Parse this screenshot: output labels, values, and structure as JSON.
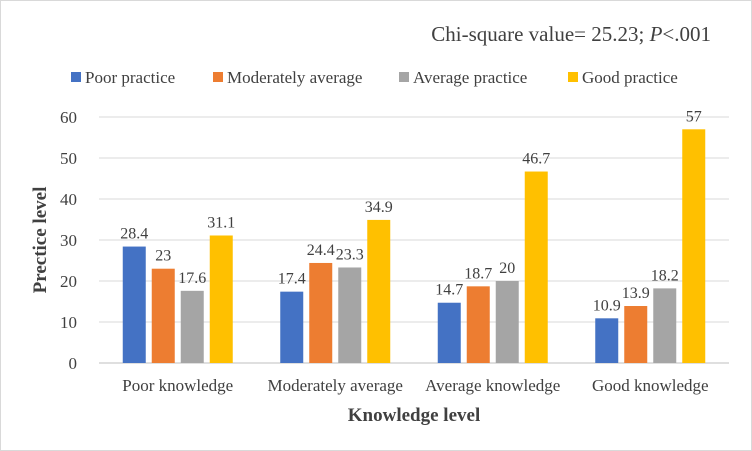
{
  "chart_data": {
    "type": "bar",
    "annotation_prefix": "Chi-square value= 25.23; ",
    "annotation_p": "P",
    "annotation_suffix": "<.001",
    "xlabel": "Knowledge level",
    "ylabel": "Prectice level",
    "ylim": [
      0,
      60
    ],
    "yticks": [
      0,
      10,
      20,
      30,
      40,
      50,
      60
    ],
    "grid": true,
    "legend_position": "top",
    "categories": [
      "Poor knowledge",
      "Moderately average",
      "Average knowledge",
      "Good knowledge"
    ],
    "series": [
      {
        "name": "Poor practice",
        "color": "#4472C4",
        "values": [
          28.4,
          17.4,
          14.7,
          10.9
        ]
      },
      {
        "name": "Moderately average",
        "color": "#ED7D31",
        "values": [
          23,
          24.4,
          18.7,
          13.9
        ]
      },
      {
        "name": "Average practice",
        "color": "#A5A5A5",
        "values": [
          17.6,
          23.3,
          20,
          18.2
        ]
      },
      {
        "name": "Good practice",
        "color": "#FFC000",
        "values": [
          31.1,
          34.9,
          46.7,
          57
        ]
      }
    ]
  }
}
